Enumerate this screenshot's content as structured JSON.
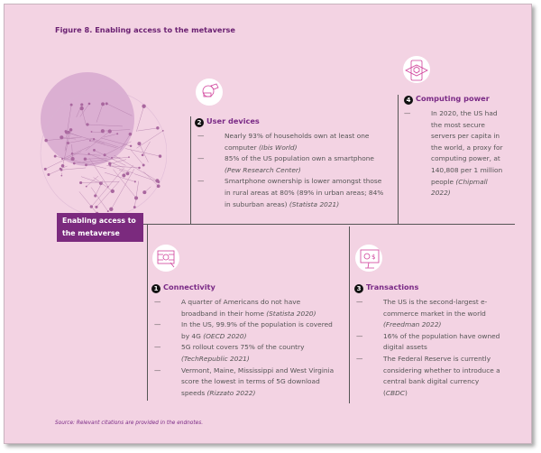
{
  "title": "Figure 8. Enabling access to the metaverse",
  "center_label": "Enabling access to the metaverse",
  "sections": {
    "user_devices": {
      "number": "2",
      "heading": "User devices",
      "icon": "vr-headset-gamepad-icon",
      "items": [
        {
          "text": "Nearly 93% of households own at least one computer ",
          "cite": "(Ibis World)"
        },
        {
          "text": "85% of the US population own a smartphone ",
          "cite": "(Pew Research Center)"
        },
        {
          "text": "Smartphone ownership is lower amongst those in rural areas at 80% (89% in urban areas; 84% in suburban areas) ",
          "cite": "(Statista 2021)"
        }
      ]
    },
    "computing_power": {
      "number": "4",
      "heading": "Computing power",
      "icon": "smartphone-cube-icon",
      "items": [
        {
          "text": "In 2020, the US had the most secure servers per capita in the world, a proxy for computing power, at 140,808 per 1 million people ",
          "cite": "(Chipmall 2022)"
        }
      ]
    },
    "connectivity": {
      "number": "1",
      "heading": "Connectivity",
      "icon": "network-screen-icon",
      "items": [
        {
          "text": "A quarter of Americans do not have broadband in their home ",
          "cite": "(Statista 2020)"
        },
        {
          "text": "In the US, 99.9% of the population is covered by 4G ",
          "cite": "(OECD 2020)"
        },
        {
          "text": "5G rollout covers 75% of the country ",
          "cite": "(TechRepublic 2021)"
        },
        {
          "text": "Vermont, Maine, Mississippi and West Virginia score the lowest in terms of 5G download speeds ",
          "cite": "(Rizzato 2022)"
        }
      ]
    },
    "transactions": {
      "number": "3",
      "heading": "Transactions",
      "icon": "monitor-gear-dollar-icon",
      "items": [
        {
          "text": "The US is the second-largest e-commerce market in the world ",
          "cite": "(Freedman 2022)"
        },
        {
          "text": "16% of the population have owned digital assets",
          "cite": ""
        },
        {
          "text": "The Federal Reserve is currently considering whether to introduce a central bank digital currency (",
          "cite": "CBDC",
          "tail": ")"
        }
      ]
    }
  },
  "dash": "—",
  "source": "Source: Relevant citations are provided in the endnotes.",
  "colors": {
    "background": "#f3d3e3",
    "accent": "#7b2a7e",
    "icon_stroke": "#d0409a"
  }
}
